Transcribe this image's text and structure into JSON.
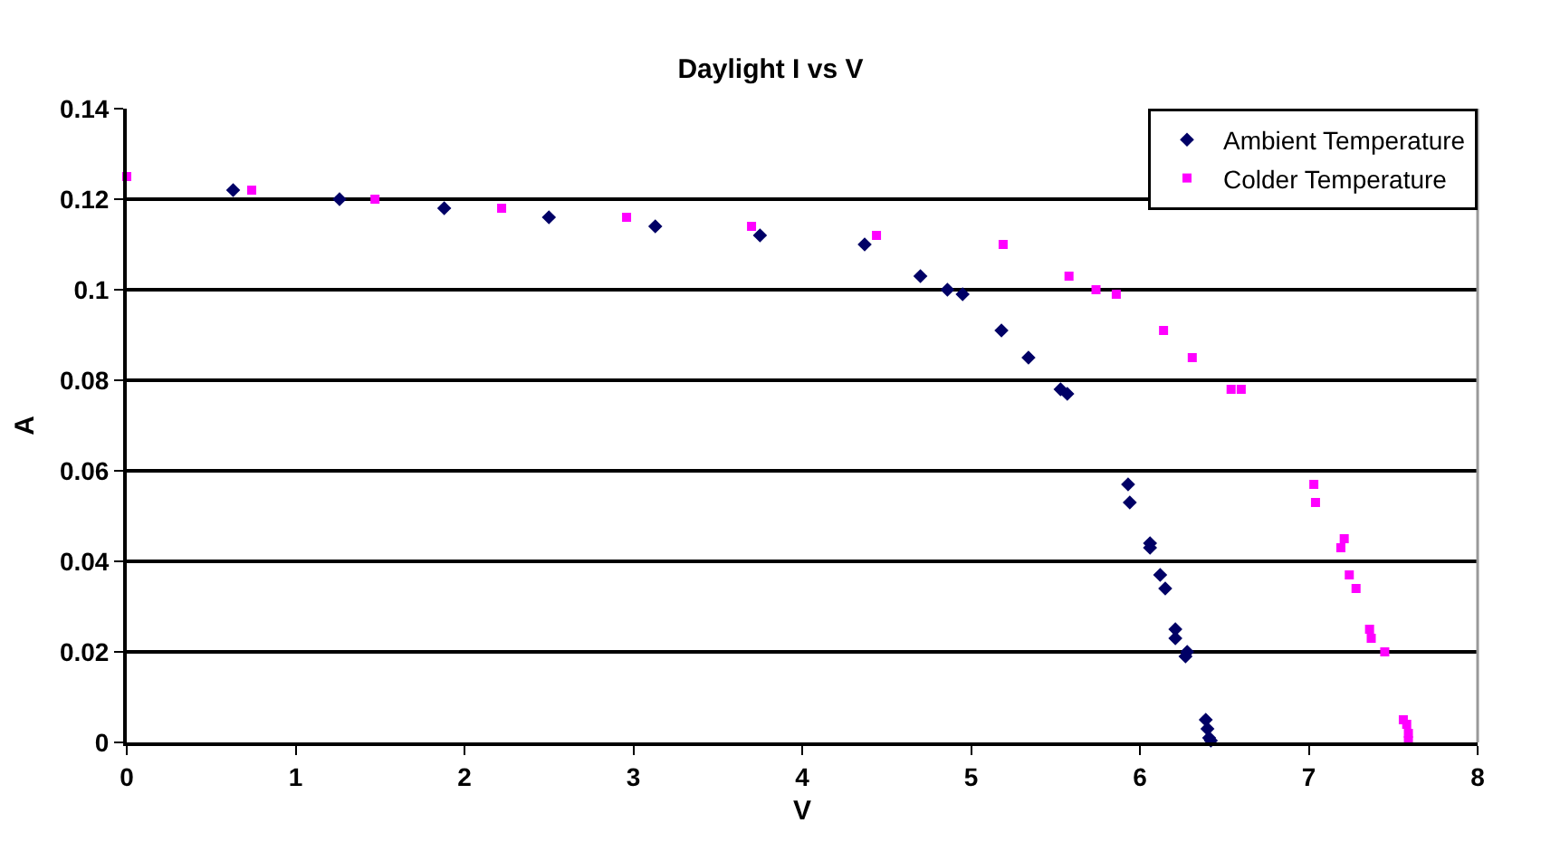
{
  "chart_data": {
    "type": "scatter",
    "title": "Daylight I vs V",
    "xlabel": "V",
    "ylabel": "A",
    "xlim": [
      0,
      8
    ],
    "xticks": [
      0,
      1,
      2,
      3,
      4,
      5,
      6,
      7,
      8
    ],
    "ylim": [
      0,
      0.14
    ],
    "yticks": [
      0,
      0.02,
      0.04,
      0.06,
      0.08,
      0.1,
      0.12,
      0.14
    ],
    "grid": "y",
    "legend": "top right",
    "series": [
      {
        "name": "Ambient Temperature",
        "color": "#000066",
        "marker": "diamond",
        "x": [
          0.63,
          1.26,
          1.88,
          2.5,
          3.13,
          3.75,
          4.37,
          4.7,
          4.86,
          4.95,
          5.18,
          5.34,
          5.53,
          5.57,
          5.93,
          5.94,
          6.06,
          6.06,
          6.12,
          6.15,
          6.21,
          6.21,
          6.28,
          6.27,
          6.39,
          6.4,
          6.41,
          6.42
        ],
        "values": [
          0.122,
          0.12,
          0.118,
          0.116,
          0.114,
          0.112,
          0.11,
          0.103,
          0.1,
          0.099,
          0.091,
          0.085,
          0.078,
          0.077,
          0.057,
          0.053,
          0.044,
          0.043,
          0.037,
          0.034,
          0.025,
          0.023,
          0.02,
          0.019,
          0.005,
          0.003,
          0.001,
          0.0004
        ]
      },
      {
        "name": "Colder Temperature",
        "color": "#ff00ff",
        "marker": "square",
        "x": [
          0,
          0.74,
          1.47,
          2.22,
          2.96,
          3.7,
          4.44,
          5.19,
          5.58,
          5.74,
          5.86,
          6.14,
          6.31,
          6.54,
          6.6,
          7.03,
          7.04,
          7.21,
          7.19,
          7.24,
          7.28,
          7.36,
          7.37,
          7.45,
          7.56,
          7.58,
          7.59,
          7.59
        ],
        "values": [
          0.125,
          0.122,
          0.12,
          0.118,
          0.116,
          0.114,
          0.112,
          0.11,
          0.103,
          0.1,
          0.099,
          0.091,
          0.085,
          0.078,
          0.078,
          0.057,
          0.053,
          0.045,
          0.043,
          0.037,
          0.034,
          0.025,
          0.023,
          0.02,
          0.005,
          0.004,
          0.002,
          0.0004
        ]
      }
    ]
  }
}
